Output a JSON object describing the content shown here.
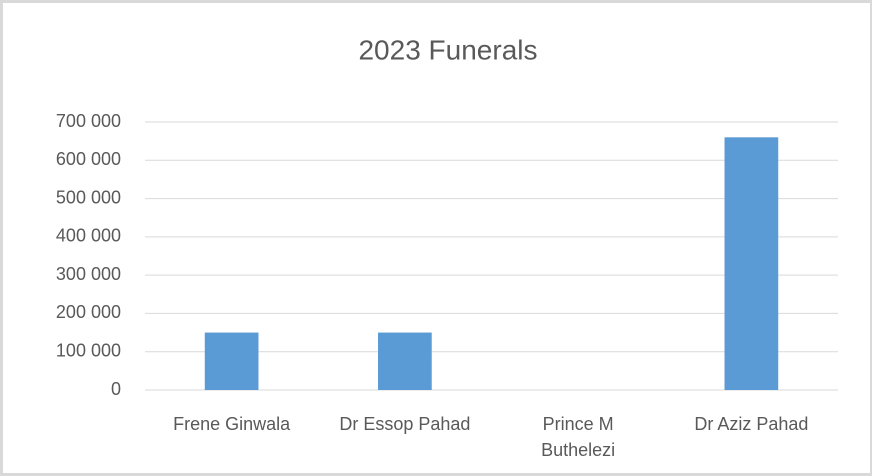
{
  "chart_data": {
    "type": "bar",
    "title": "2023 Funerals",
    "categories": [
      "Frene Ginwala",
      "Dr Essop Pahad",
      "Prince M Buthelezi",
      "Dr Aziz Pahad"
    ],
    "values": [
      150000,
      150000,
      0,
      660000
    ],
    "color": "#5b9bd5",
    "ylim": [
      0,
      700000
    ],
    "yticks": [
      0,
      {
        "value": 100000,
        "label": "100 000"
      },
      {
        "value": 200000,
        "label": "200 000"
      },
      {
        "value": 300000,
        "label": "300 000"
      },
      {
        "value": 400000,
        "label": "400 000"
      },
      {
        "value": 500000,
        "label": "500 000"
      },
      {
        "value": 600000,
        "label": "600 000"
      },
      {
        "value": 700000,
        "label": "700 000"
      }
    ],
    "grid": true
  }
}
